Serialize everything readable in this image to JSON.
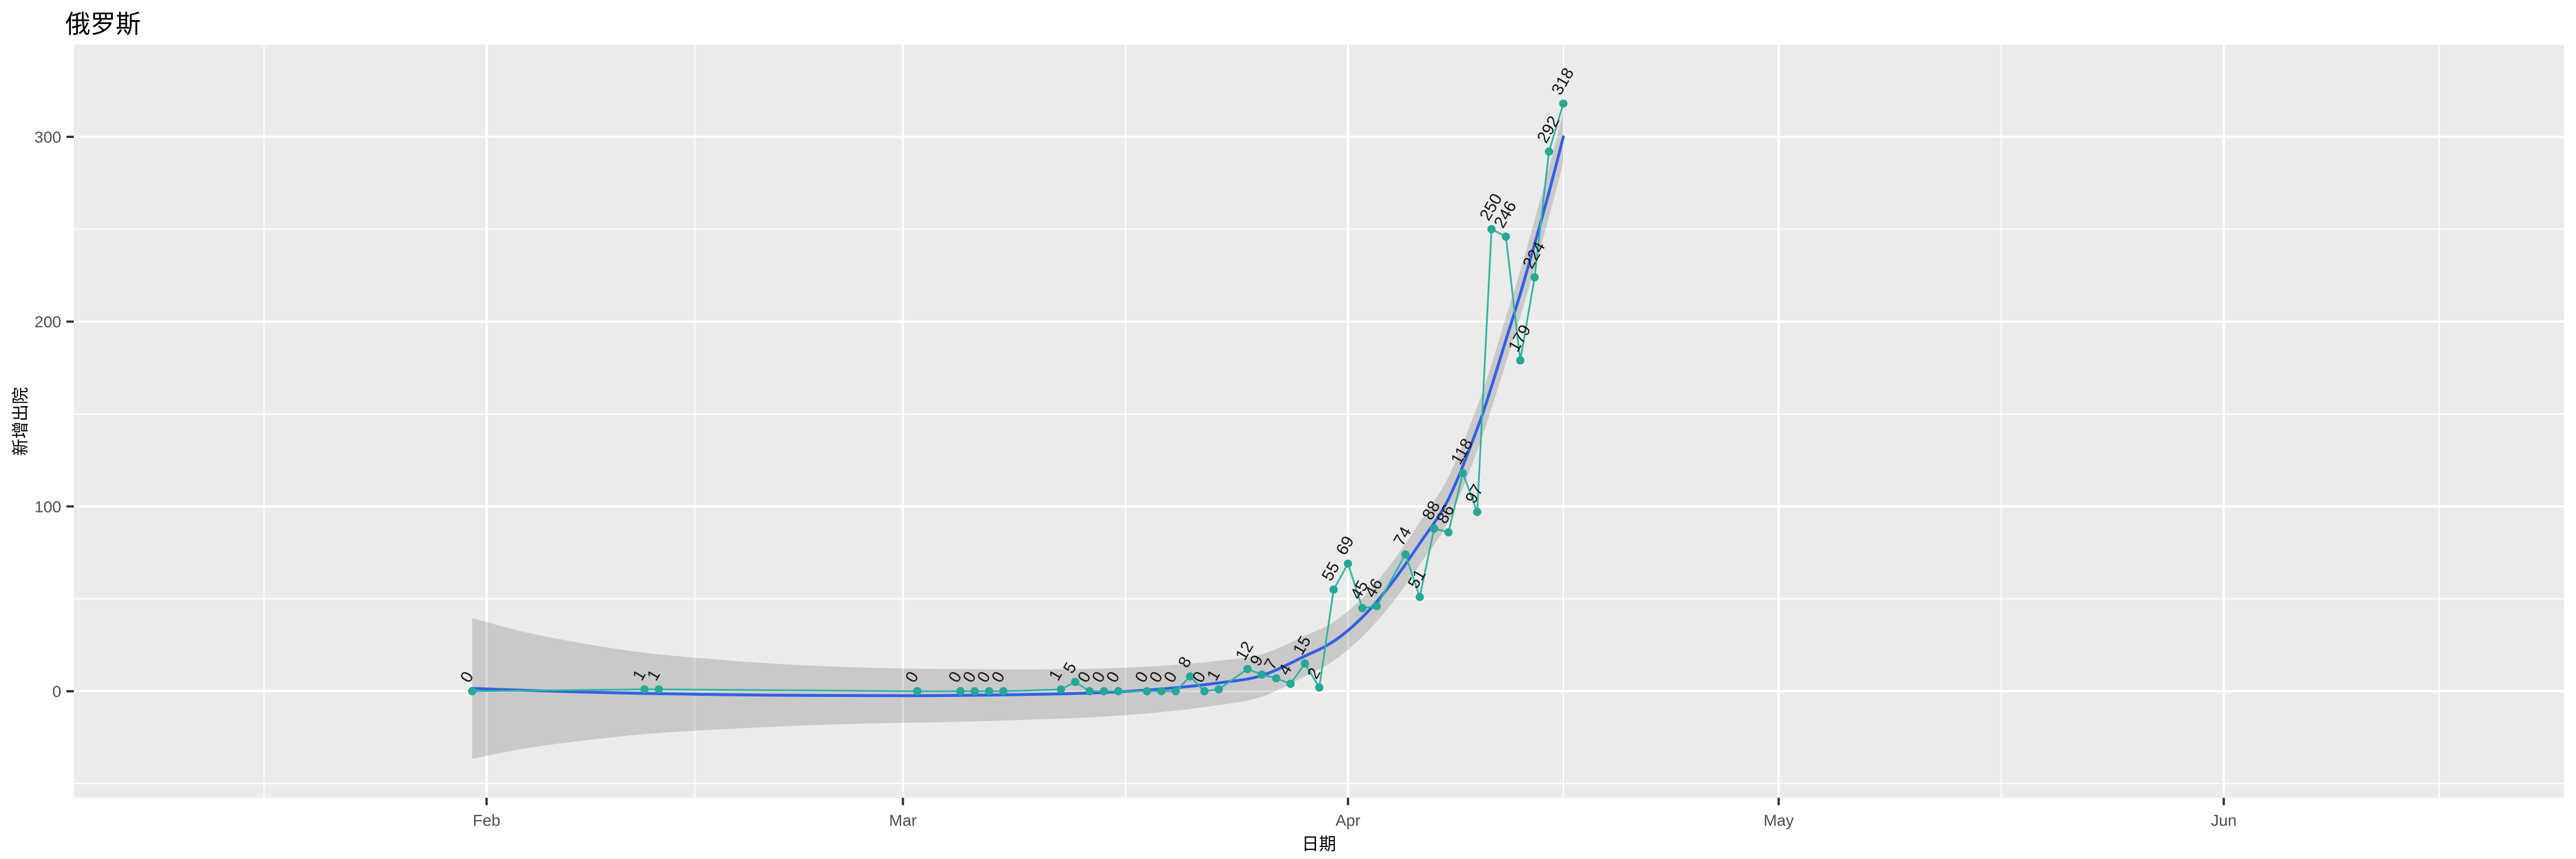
{
  "title": "俄罗斯",
  "chart_data": {
    "type": "line",
    "title": "俄罗斯",
    "xlabel": "日期",
    "ylabel": "新增出院",
    "grid": true,
    "legend": false,
    "panel_bg": "#EBEBEB",
    "x_axis": {
      "ticks": [
        {
          "label": "Feb",
          "date": "2020-02-01"
        },
        {
          "label": "Mar",
          "date": "2020-03-01"
        },
        {
          "label": "Apr",
          "date": "2020-04-01"
        },
        {
          "label": "May",
          "date": "2020-05-01"
        },
        {
          "label": "Jun",
          "date": "2020-06-01"
        }
      ],
      "month_starts_for_minor": [
        "2020-01-01",
        "2020-02-01",
        "2020-03-01",
        "2020-04-01",
        "2020-05-01",
        "2020-06-01",
        "2020-07-01"
      ],
      "visible_range": [
        "2020-01-03",
        "2020-06-24"
      ]
    },
    "y_axis": {
      "ticks": [
        0,
        100,
        200,
        300
      ],
      "minor_step": 50,
      "visible_range": [
        -57,
        347
      ]
    },
    "series": [
      {
        "name": "daily-new-discharged",
        "style": "line+points+labels",
        "color": "#30B2A2",
        "point_color": "#27A796",
        "label_color": "#141414",
        "points": [
          [
            "2020-01-31",
            0
          ],
          [
            "2020-02-12",
            1
          ],
          [
            "2020-02-13",
            1
          ],
          [
            "2020-03-02",
            0
          ],
          [
            "2020-03-05",
            0
          ],
          [
            "2020-03-06",
            0
          ],
          [
            "2020-03-07",
            0
          ],
          [
            "2020-03-08",
            0
          ],
          [
            "2020-03-12",
            1
          ],
          [
            "2020-03-13",
            5
          ],
          [
            "2020-03-14",
            0
          ],
          [
            "2020-03-15",
            0
          ],
          [
            "2020-03-16",
            0
          ],
          [
            "2020-03-18",
            0
          ],
          [
            "2020-03-19",
            0
          ],
          [
            "2020-03-20",
            0
          ],
          [
            "2020-03-21",
            8
          ],
          [
            "2020-03-22",
            0
          ],
          [
            "2020-03-23",
            1
          ],
          [
            "2020-03-25",
            12
          ],
          [
            "2020-03-26",
            9
          ],
          [
            "2020-03-27",
            7
          ],
          [
            "2020-03-28",
            4
          ],
          [
            "2020-03-29",
            15
          ],
          [
            "2020-03-30",
            2
          ],
          [
            "2020-03-31",
            55
          ],
          [
            "2020-04-01",
            69
          ],
          [
            "2020-04-02",
            45
          ],
          [
            "2020-04-03",
            46
          ],
          [
            "2020-04-05",
            74
          ],
          [
            "2020-04-06",
            51
          ],
          [
            "2020-04-07",
            88
          ],
          [
            "2020-04-08",
            86
          ],
          [
            "2020-04-09",
            118
          ],
          [
            "2020-04-10",
            97
          ],
          [
            "2020-04-11",
            250
          ],
          [
            "2020-04-12",
            246
          ],
          [
            "2020-04-13",
            179
          ],
          [
            "2020-04-14",
            224
          ],
          [
            "2020-04-15",
            292
          ],
          [
            "2020-04-16",
            318
          ]
        ]
      },
      {
        "name": "loess-smooth-with-ci",
        "style": "smooth",
        "color": "#3060E6",
        "band_color": "rgba(0,0,0,0.145)",
        "samples_days_value_halfband": [
          [
            0,
            1.5,
            38
          ],
          [
            4,
            0.4,
            31
          ],
          [
            8,
            -0.5,
            26
          ],
          [
            12,
            -1.2,
            22
          ],
          [
            16,
            -1.7,
            19.5
          ],
          [
            20,
            -2.1,
            17.5
          ],
          [
            24,
            -2.3,
            16
          ],
          [
            28,
            -2.4,
            15
          ],
          [
            32,
            -2.4,
            14.5
          ],
          [
            36,
            -2.1,
            14
          ],
          [
            40,
            -1.6,
            13.5
          ],
          [
            44,
            -0.7,
            13
          ],
          [
            48,
            1.2,
            12.5
          ],
          [
            52,
            4.5,
            12
          ],
          [
            55,
            8.5,
            11.5
          ],
          [
            58,
            19,
            11
          ],
          [
            60,
            27,
            10.5
          ],
          [
            62,
            40,
            10.5
          ],
          [
            64,
            58,
            11
          ],
          [
            66,
            80,
            11.5
          ],
          [
            68,
            104,
            12
          ],
          [
            70,
            142,
            12
          ],
          [
            71,
            165,
            12
          ],
          [
            72,
            190,
            12.5
          ],
          [
            73,
            215,
            12.5
          ],
          [
            74,
            242,
            13
          ],
          [
            75,
            270,
            13.5
          ],
          [
            76,
            300,
            14
          ]
        ],
        "smooth_epoch": "2020-01-31"
      }
    ],
    "colors": {
      "panel": "#EBEBEB",
      "grid": "#FFFFFF",
      "tick_mark": "#333333",
      "tick_text": "#4D4D4D",
      "title_text": "#000000"
    }
  }
}
